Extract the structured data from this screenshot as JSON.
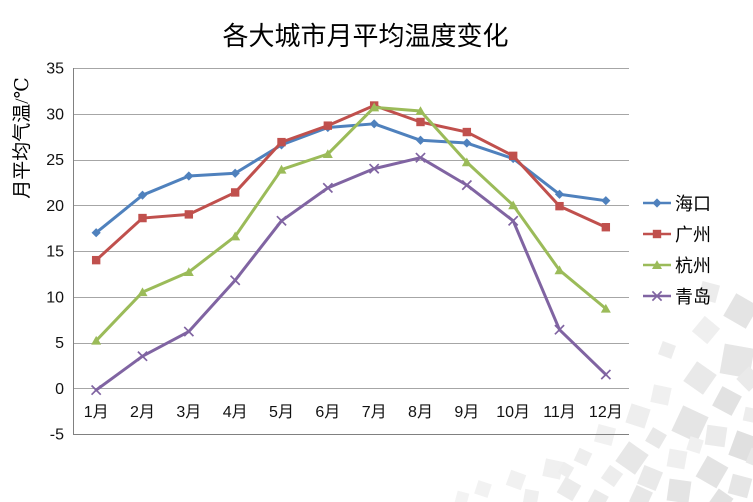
{
  "chart_data": {
    "type": "line",
    "title": "各大城市月平均温度变化",
    "ylabel": "月平均气温/℃",
    "xlabel": "",
    "ylim": [
      -5,
      35
    ],
    "ytick_step": 5,
    "yticks": [
      35,
      30,
      25,
      20,
      15,
      10,
      5,
      0,
      -5
    ],
    "grid": true,
    "legend_position": "right",
    "categories": [
      "1月",
      "2月",
      "3月",
      "4月",
      "5月",
      "6月",
      "7月",
      "8月",
      "9月",
      "10月",
      "11月",
      "12月"
    ],
    "series": [
      {
        "id": "haikou",
        "name": "海口",
        "color": "#4F81BD",
        "marker": "diamond",
        "values": [
          17.0,
          21.1,
          23.2,
          23.5,
          26.6,
          28.5,
          28.9,
          27.1,
          26.8,
          25.1,
          21.2,
          20.5
        ]
      },
      {
        "id": "guangzhou",
        "name": "广州",
        "color": "#C0504D",
        "marker": "square",
        "values": [
          14.0,
          18.6,
          19.0,
          21.4,
          26.9,
          28.7,
          30.9,
          29.1,
          28.0,
          25.4,
          19.9,
          17.6
        ]
      },
      {
        "id": "hangzhou",
        "name": "杭州",
        "color": "#9BBB59",
        "marker": "triangle",
        "values": [
          5.2,
          10.5,
          12.7,
          16.6,
          23.9,
          25.6,
          30.7,
          30.3,
          24.7,
          20.0,
          12.9,
          8.7
        ]
      },
      {
        "id": "qingdao",
        "name": "青岛",
        "color": "#8064A2",
        "marker": "x",
        "values": [
          -0.2,
          3.5,
          6.2,
          11.8,
          18.3,
          21.9,
          24.0,
          25.2,
          22.2,
          18.3,
          6.4,
          1.5
        ]
      }
    ]
  },
  "colors": {
    "grid": "#A6A6A6",
    "axis": "#808080",
    "text": "#111111",
    "background": "#FFFFFF"
  }
}
